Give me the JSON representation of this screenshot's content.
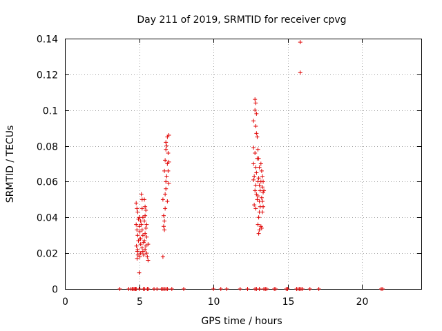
{
  "chart_data": {
    "type": "scatter",
    "title": "Day 211 of 2019, SRMTID for receiver cpvg",
    "xlabel": "GPS time / hours",
    "ylabel": "SRMTID / TECUs",
    "xlim": [
      0,
      24
    ],
    "ylim": [
      0,
      0.14
    ],
    "xticks": [
      0,
      5,
      10,
      15,
      20
    ],
    "xtick_labels": [
      "0",
      "5",
      "10",
      "15",
      "20"
    ],
    "yticks": [
      0,
      0.02,
      0.04,
      0.06,
      0.08,
      0.1,
      0.12,
      0.14
    ],
    "ytick_labels": [
      "0",
      "0.02",
      "0.04",
      "0.06",
      "0.08",
      "0.1",
      "0.12",
      "0.14"
    ],
    "grid": true,
    "marker": "+",
    "series": [
      {
        "name": "SRMTID",
        "color": "#e00000",
        "points": [
          [
            4.8,
            0.048
          ],
          [
            4.85,
            0.045
          ],
          [
            4.9,
            0.043
          ],
          [
            4.95,
            0.039
          ],
          [
            4.8,
            0.036
          ],
          [
            4.85,
            0.033
          ],
          [
            4.9,
            0.03
          ],
          [
            4.95,
            0.027
          ],
          [
            4.82,
            0.024
          ],
          [
            4.88,
            0.021
          ],
          [
            4.92,
            0.019
          ],
          [
            4.86,
            0.017
          ],
          [
            5.0,
            0.04
          ],
          [
            5.05,
            0.032
          ],
          [
            5.1,
            0.025
          ],
          [
            5.05,
            0.018
          ],
          [
            5.0,
            0.009
          ],
          [
            5.15,
            0.053
          ],
          [
            5.2,
            0.05
          ],
          [
            5.2,
            0.045
          ],
          [
            5.25,
            0.04
          ],
          [
            5.15,
            0.036
          ],
          [
            5.2,
            0.033
          ],
          [
            5.25,
            0.03
          ],
          [
            5.1,
            0.028
          ],
          [
            5.3,
            0.026
          ],
          [
            5.2,
            0.023
          ],
          [
            5.25,
            0.021
          ],
          [
            5.1,
            0.02
          ],
          [
            5.3,
            0.019
          ],
          [
            5.35,
            0.05
          ],
          [
            5.4,
            0.046
          ],
          [
            5.45,
            0.044
          ],
          [
            5.4,
            0.041
          ],
          [
            5.35,
            0.038
          ],
          [
            5.5,
            0.036
          ],
          [
            5.45,
            0.034
          ],
          [
            5.4,
            0.031
          ],
          [
            5.5,
            0.029
          ],
          [
            5.35,
            0.027
          ],
          [
            5.45,
            0.024
          ],
          [
            5.4,
            0.022
          ],
          [
            5.5,
            0.02
          ],
          [
            5.55,
            0.018
          ],
          [
            5.6,
            0.016
          ],
          [
            5.6,
            0.025
          ],
          [
            5.0,
            0.035
          ],
          [
            5.1,
            0.038
          ],
          [
            4.9,
            0.022
          ],
          [
            5.05,
            0.028
          ],
          [
            6.6,
            0.018
          ],
          [
            6.65,
            0.035
          ],
          [
            6.7,
            0.033
          ],
          [
            6.7,
            0.038
          ],
          [
            6.75,
            0.045
          ],
          [
            6.6,
            0.05
          ],
          [
            6.75,
            0.053
          ],
          [
            6.8,
            0.056
          ],
          [
            6.8,
            0.06
          ],
          [
            6.85,
            0.063
          ],
          [
            6.7,
            0.066
          ],
          [
            6.9,
            0.07
          ],
          [
            6.75,
            0.072
          ],
          [
            6.8,
            0.078
          ],
          [
            6.85,
            0.08
          ],
          [
            6.8,
            0.082
          ],
          [
            6.9,
            0.085
          ],
          [
            6.95,
            0.076
          ],
          [
            7.0,
            0.071
          ],
          [
            6.95,
            0.066
          ],
          [
            7.0,
            0.059
          ],
          [
            6.9,
            0.049
          ],
          [
            6.65,
            0.041
          ],
          [
            7.0,
            0.086
          ],
          [
            12.7,
            0.094
          ],
          [
            12.8,
            0.1
          ],
          [
            12.85,
            0.104
          ],
          [
            12.8,
            0.106
          ],
          [
            12.9,
            0.098
          ],
          [
            12.85,
            0.091
          ],
          [
            12.9,
            0.087
          ],
          [
            12.7,
            0.079
          ],
          [
            12.8,
            0.076
          ],
          [
            12.95,
            0.073
          ],
          [
            12.7,
            0.07
          ],
          [
            12.85,
            0.068
          ],
          [
            12.9,
            0.065
          ],
          [
            12.75,
            0.063
          ],
          [
            12.7,
            0.061
          ],
          [
            12.85,
            0.058
          ],
          [
            12.8,
            0.055
          ],
          [
            12.9,
            0.053
          ],
          [
            12.95,
            0.05
          ],
          [
            12.75,
            0.047
          ],
          [
            12.85,
            0.045
          ],
          [
            13.0,
            0.078
          ],
          [
            13.05,
            0.073
          ],
          [
            13.1,
            0.068
          ],
          [
            13.05,
            0.062
          ],
          [
            13.1,
            0.058
          ],
          [
            13.15,
            0.055
          ],
          [
            13.0,
            0.052
          ],
          [
            13.1,
            0.049
          ],
          [
            13.15,
            0.046
          ],
          [
            13.1,
            0.043
          ],
          [
            13.05,
            0.04
          ],
          [
            13.0,
            0.036
          ],
          [
            13.1,
            0.033
          ],
          [
            13.05,
            0.031
          ],
          [
            13.2,
            0.07
          ],
          [
            13.25,
            0.066
          ],
          [
            13.3,
            0.063
          ],
          [
            13.2,
            0.06
          ],
          [
            13.3,
            0.057
          ],
          [
            13.35,
            0.054
          ],
          [
            13.25,
            0.051
          ],
          [
            13.3,
            0.049
          ],
          [
            13.35,
            0.046
          ],
          [
            13.3,
            0.043
          ],
          [
            13.2,
            0.035
          ],
          [
            13.25,
            0.034
          ],
          [
            13.35,
            0.06
          ],
          [
            13.4,
            0.055
          ],
          [
            12.95,
            0.085
          ],
          [
            13.0,
            0.06
          ],
          [
            15.85,
            0.138
          ],
          [
            15.85,
            0.121
          ]
        ]
      },
      {
        "name": "zero-level",
        "color": "#e00000",
        "points": [
          [
            3.7,
            0
          ],
          [
            4.3,
            0
          ],
          [
            4.45,
            0
          ],
          [
            4.55,
            0
          ],
          [
            4.6,
            0
          ],
          [
            4.7,
            0
          ],
          [
            4.75,
            0
          ],
          [
            4.8,
            0
          ],
          [
            5.0,
            0
          ],
          [
            5.3,
            0
          ],
          [
            5.35,
            0
          ],
          [
            5.55,
            0
          ],
          [
            5.6,
            0
          ],
          [
            6.0,
            0
          ],
          [
            6.2,
            0
          ],
          [
            6.5,
            0
          ],
          [
            6.6,
            0
          ],
          [
            6.7,
            0
          ],
          [
            6.8,
            0
          ],
          [
            6.9,
            0
          ],
          [
            7.2,
            0
          ],
          [
            8.0,
            0
          ],
          [
            10.0,
            0
          ],
          [
            10.5,
            0
          ],
          [
            10.9,
            0
          ],
          [
            11.8,
            0
          ],
          [
            12.3,
            0
          ],
          [
            12.8,
            0
          ],
          [
            12.9,
            0
          ],
          [
            13.1,
            0
          ],
          [
            13.4,
            0
          ],
          [
            13.5,
            0
          ],
          [
            13.6,
            0
          ],
          [
            14.1,
            0
          ],
          [
            14.2,
            0
          ],
          [
            14.9,
            0
          ],
          [
            15.0,
            0
          ],
          [
            15.6,
            0
          ],
          [
            15.7,
            0
          ],
          [
            15.8,
            0
          ],
          [
            15.9,
            0
          ],
          [
            16.0,
            0
          ],
          [
            16.5,
            0
          ],
          [
            17.1,
            0
          ],
          [
            21.3,
            0
          ],
          [
            21.4,
            0
          ]
        ]
      }
    ]
  }
}
